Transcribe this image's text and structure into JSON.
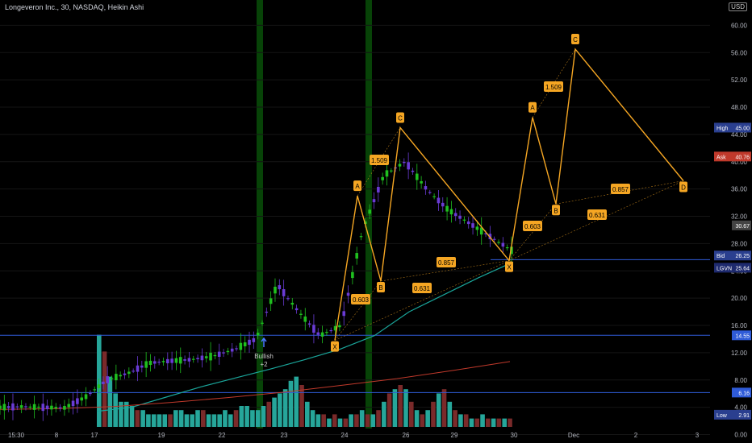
{
  "header": {
    "title": "Longeveron Inc., 30, NASDAQ, Heikin Ashi",
    "currency_badge": "USD"
  },
  "colors": {
    "background": "#000000",
    "up_candle": "#1fbf1f",
    "down_candle": "#6a3bd6",
    "pattern_line": "#f5a623",
    "label_fill": "#f5a623",
    "ema_teal": "#1aa59a",
    "ema_red": "#c0392b",
    "h_line_blue": "#2f5bd8",
    "vol_up": "#26a69a",
    "vol_down": "#7a2a2a",
    "session_band": "#0a5a0a"
  },
  "chart_data": {
    "type": "line",
    "title": "Longeveron Inc., 30, NASDAQ, Heikin Ashi",
    "y_axis": {
      "range": [
        -1,
        63
      ],
      "ticks": [
        "0.00",
        "4.00",
        "8.00",
        "12.00",
        "16.00",
        "20.00",
        "24.00",
        "28.00",
        "32.00",
        "36.00",
        "40.00",
        "44.00",
        "48.00",
        "52.00",
        "56.00",
        "60.00"
      ]
    },
    "x_axis": {
      "tick_labels": [
        "15:30",
        "8",
        "17",
        "19",
        "22",
        "23",
        "24",
        "26",
        "29",
        "30",
        "Dec",
        "2",
        "3"
      ]
    },
    "price_tags": [
      {
        "label": "High",
        "value": "45.00",
        "color": "#2a3f8f"
      },
      {
        "label": "Ask",
        "value": "40.76",
        "color": "#c0392b"
      },
      {
        "label": "",
        "value": "30.67",
        "color": "#444444"
      },
      {
        "label": "Bid",
        "value": "26.25",
        "color": "#2a3f8f"
      },
      {
        "label": "LGVN",
        "value": "25.64",
        "color": "#1e2a6e"
      },
      {
        "label": "",
        "value": "14.55",
        "color": "#2f5bd8"
      },
      {
        "label": "",
        "value": "6.16",
        "color": "#2f5bd8"
      },
      {
        "label": "Low",
        "value": "2.91",
        "color": "#2a3f8f"
      }
    ],
    "horizontal_levels": [
      25.64,
      14.55,
      6.16
    ],
    "pattern_1": {
      "points": [
        {
          "name": "X",
          "time": "Nov 23",
          "price": 13.8
        },
        {
          "name": "A",
          "time": "Nov 24",
          "price": 35.0
        },
        {
          "name": "B",
          "time": "Nov 24",
          "price": 22.5
        },
        {
          "name": "C",
          "time": "Nov 26",
          "price": 45.0
        },
        {
          "name": "X",
          "time": "Nov 30",
          "price": 25.5
        }
      ],
      "ratios": [
        "0.603",
        "1.509",
        "0.857",
        "0.631"
      ]
    },
    "pattern_2": {
      "points": [
        {
          "name": "X",
          "time": "Nov 30",
          "price": 25.5
        },
        {
          "name": "A",
          "time": "Nov 30",
          "price": 46.5
        },
        {
          "name": "B",
          "time": "Dec 1",
          "price": 33.8
        },
        {
          "name": "C",
          "time": "Dec 1",
          "price": 56.5
        },
        {
          "name": "D",
          "time": "Dec 3",
          "price": 37.2
        }
      ],
      "ratios": [
        "0.603",
        "1.509",
        "0.857",
        "0.631"
      ]
    },
    "annotation": {
      "text": "Bullish",
      "subtext": "+2"
    },
    "series": [
      {
        "values": [
          4.0,
          4.1,
          4.0,
          3.9,
          5.5,
          8.0,
          9.0,
          10.5,
          10.8,
          11.0,
          11.5,
          12.5,
          14.0,
          22.0,
          18.0,
          14.5,
          16.0,
          30.0,
          38.0,
          40.0,
          36.0,
          33.0,
          31.0,
          29.0,
          27.0
        ]
      },
      {
        "values": [
          3.4,
          4.0,
          5.5,
          7.0,
          8.3,
          9.6,
          11.0,
          12.5,
          14.5,
          18.0,
          20.5,
          23.0,
          25.3
        ]
      },
      {
        "values": [
          3.7,
          3.8,
          4.1,
          4.7,
          5.4,
          6.2,
          7.2,
          8.2,
          9.4,
          10.7
        ]
      }
    ],
    "volume": [
      22,
      18,
      12,
      8,
      6,
      6,
      5,
      4,
      4,
      3,
      3,
      3,
      3,
      3,
      4,
      4,
      3,
      3,
      4,
      4,
      3,
      3,
      3,
      4,
      3,
      4,
      5,
      5,
      4,
      4,
      5,
      6,
      7,
      8,
      9,
      11,
      12,
      10,
      6,
      4,
      3,
      3,
      2,
      3,
      2,
      2,
      3,
      3,
      4,
      3,
      3,
      4,
      6,
      8,
      9,
      10,
      9,
      6,
      4,
      3,
      4,
      6,
      8,
      9,
      6,
      4,
      3,
      3,
      2,
      2,
      3,
      2,
      2,
      2,
      2,
      2
    ]
  }
}
